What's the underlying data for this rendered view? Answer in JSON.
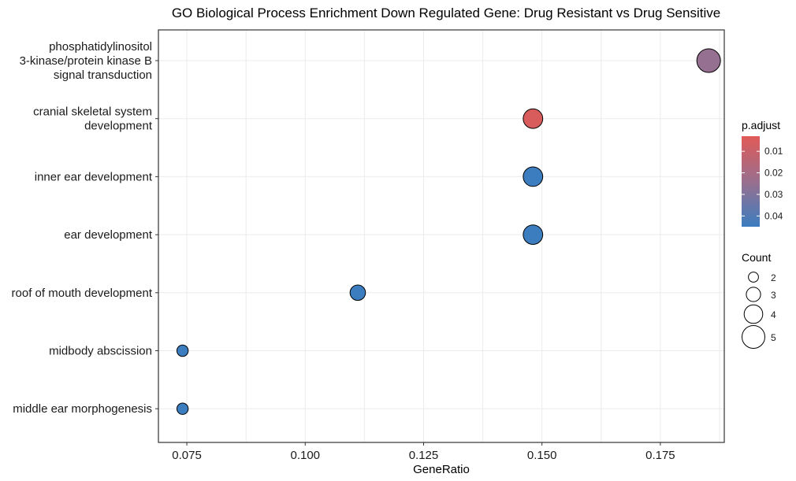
{
  "chart_data": {
    "type": "scatter",
    "title": "GO Biological Process Enrichment Down Regulated Gene: Drug Resistant vs Drug Sensitive",
    "xlabel": "GeneRatio",
    "ylabel": "",
    "xlim": [
      0.069,
      0.1885
    ],
    "x_ticks": [
      0.075,
      0.1,
      0.125,
      0.15,
      0.175
    ],
    "x_tick_labels": [
      "0.075",
      "0.100",
      "0.125",
      "0.150",
      "0.175"
    ],
    "grid": true,
    "categories": [
      {
        "lines": [
          "phosphatidylinositol",
          "3-kinase/protein kinase B",
          "signal transduction"
        ]
      },
      {
        "lines": [
          "cranial skeletal system",
          "development"
        ]
      },
      {
        "lines": [
          "inner ear development"
        ]
      },
      {
        "lines": [
          "ear development"
        ]
      },
      {
        "lines": [
          "roof of mouth development"
        ]
      },
      {
        "lines": [
          "midbody abscission"
        ]
      },
      {
        "lines": [
          "middle ear morphogenesis"
        ]
      }
    ],
    "points": [
      {
        "category": 0,
        "x": 0.1852,
        "count": 5,
        "p_adjust": 0.025
      },
      {
        "category": 1,
        "x": 0.1481,
        "count": 4,
        "p_adjust": 0.005
      },
      {
        "category": 2,
        "x": 0.1481,
        "count": 4,
        "p_adjust": 0.045
      },
      {
        "category": 3,
        "x": 0.1481,
        "count": 4,
        "p_adjust": 0.045
      },
      {
        "category": 4,
        "x": 0.1111,
        "count": 3,
        "p_adjust": 0.045
      },
      {
        "category": 5,
        "x": 0.0741,
        "count": 2,
        "p_adjust": 0.045
      },
      {
        "category": 6,
        "x": 0.0741,
        "count": 2,
        "p_adjust": 0.045
      }
    ],
    "color_legend": {
      "title": "p.adjust",
      "low_color": "#e05a57",
      "high_color": "#3c7dbf",
      "range": [
        0.003,
        0.045
      ],
      "ticks": [
        0.01,
        0.02,
        0.03,
        0.04
      ],
      "tick_labels": [
        "0.01",
        "0.02",
        "0.03",
        "0.04"
      ]
    },
    "size_legend": {
      "title": "Count",
      "items": [
        {
          "count": 2,
          "label": "2"
        },
        {
          "count": 3,
          "label": "3"
        },
        {
          "count": 4,
          "label": "4"
        },
        {
          "count": 5,
          "label": "5"
        }
      ]
    }
  }
}
